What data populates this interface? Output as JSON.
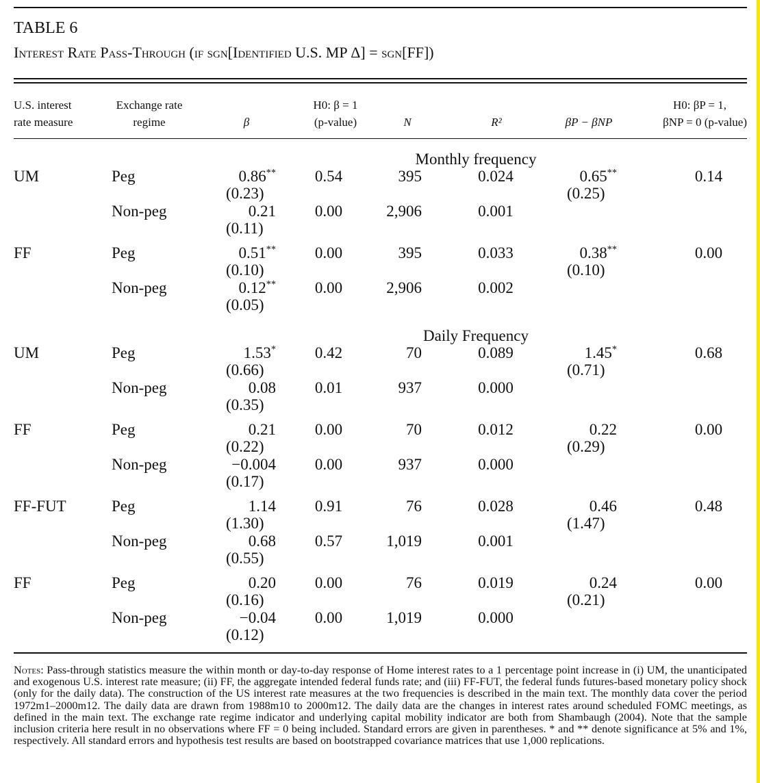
{
  "table_label": "TABLE 6",
  "caption": "Interest Rate Pass-Through (if sgn[Identified U.S. MP Δ] = sgn[FF])",
  "headers": {
    "col1_line1": "U.S. interest",
    "col1_line2": "rate measure",
    "col2_line1": "Exchange rate",
    "col2_line2": "regime",
    "beta": "β",
    "h0_beta_line1": "H0: β = 1",
    "h0_beta_line2": "(p-value)",
    "n": "N",
    "r2": "R²",
    "diff": "βP − βNP",
    "h0_joint_line1": "H0: βP = 1,",
    "h0_joint_line2": "βNP = 0 (p-value)"
  },
  "sections": [
    {
      "title": "Monthly frequency",
      "groups": [
        {
          "measure": "UM",
          "rows": [
            {
              "regime": "Peg",
              "beta": "0.86**",
              "se": "(0.23)",
              "p": "0.54",
              "n": "395",
              "r2": "0.024",
              "diff": "0.65**",
              "diff_se": "(0.25)",
              "joint": "0.14"
            },
            {
              "regime": "Non-peg",
              "beta": "0.21",
              "se": "(0.11)",
              "p": "0.00",
              "n": "2,906",
              "r2": "0.001"
            }
          ]
        },
        {
          "measure": "FF",
          "rows": [
            {
              "regime": "Peg",
              "beta": "0.51**",
              "se": "(0.10)",
              "p": "0.00",
              "n": "395",
              "r2": "0.033",
              "diff": "0.38**",
              "diff_se": "(0.10)",
              "joint": "0.00"
            },
            {
              "regime": "Non-peg",
              "beta": "0.12**",
              "se": "(0.05)",
              "p": "0.00",
              "n": "2,906",
              "r2": "0.002"
            }
          ]
        }
      ]
    },
    {
      "title": "Daily Frequency",
      "groups": [
        {
          "measure": "UM",
          "rows": [
            {
              "regime": "Peg",
              "beta": "1.53*",
              "se": "(0.66)",
              "p": "0.42",
              "n": "70",
              "r2": "0.089",
              "diff": "1.45*",
              "diff_se": "(0.71)",
              "joint": "0.68"
            },
            {
              "regime": "Non-peg",
              "beta": "0.08",
              "se": "(0.35)",
              "p": "0.01",
              "n": "937",
              "r2": "0.000"
            }
          ]
        },
        {
          "measure": "FF",
          "rows": [
            {
              "regime": "Peg",
              "beta": "0.21",
              "se": "(0.22)",
              "p": "0.00",
              "n": "70",
              "r2": "0.012",
              "diff": "0.22",
              "diff_se": "(0.29)",
              "joint": "0.00"
            },
            {
              "regime": "Non-peg",
              "beta": "−0.004",
              "se": "(0.17)",
              "p": "0.00",
              "n": "937",
              "r2": "0.000"
            }
          ]
        },
        {
          "measure": "FF-FUT",
          "rows": [
            {
              "regime": "Peg",
              "beta": "1.14",
              "se": "(1.30)",
              "p": "0.91",
              "n": "76",
              "r2": "0.028",
              "diff": "0.46",
              "diff_se": "(1.47)",
              "joint": "0.48"
            },
            {
              "regime": "Non-peg",
              "beta": "0.68",
              "se": "(0.55)",
              "p": "0.57",
              "n": "1,019",
              "r2": "0.001"
            }
          ]
        },
        {
          "measure": "FF",
          "rows": [
            {
              "regime": "Peg",
              "beta": "0.20",
              "se": "(0.16)",
              "p": "0.00",
              "n": "76",
              "r2": "0.019",
              "diff": "0.24",
              "diff_se": "(0.21)",
              "joint": "0.00"
            },
            {
              "regime": "Non-peg",
              "beta": "−0.04",
              "se": "(0.12)",
              "p": "0.00",
              "n": "1,019",
              "r2": "0.000"
            }
          ]
        }
      ]
    }
  ],
  "notes_label": "Notes:",
  "notes_text": " Pass-through statistics measure the within month or day-to-day response of Home interest rates to a 1 percentage point increase in (i) UM, the unanticipated and exogenous U.S. interest rate measure; (ii) FF, the aggregate intended federal funds rate; and (iii) FF-FUT, the federal funds futures-based monetary policy shock (only for the daily data). The construction of the US interest rate measures at the two frequencies is described in the main text. The monthly data cover the period 1972m1–2000m12. The daily data are drawn from 1988m10 to 2000m12. The daily data are the changes in interest rates around scheduled FOMC meetings, as defined in the main text. The exchange rate regime indicator and underlying capital mobility indicator are both from Shambaugh (2004). Note that the sample inclusion criteria here result in no observations where FF = 0 being included. Standard errors are given in parentheses. * and ** denote significance at 5% and 1%, respectively. All standard errors and hypothesis test results are based on bootstrapped covariance matrices that use 1,000 replications."
}
